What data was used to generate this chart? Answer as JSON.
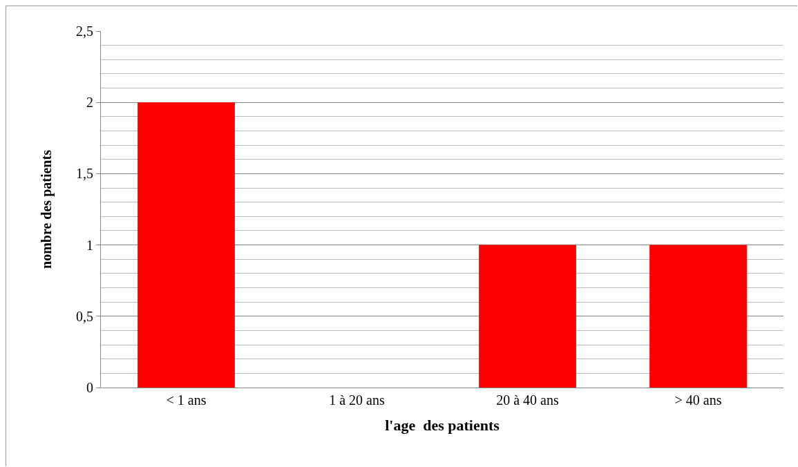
{
  "chart_data": {
    "type": "bar",
    "xlabel": "l'age  des patients",
    "ylabel": "nombre des patients",
    "categories": [
      "< 1 ans",
      "1 à 20 ans",
      "20 à 40 ans",
      "> 40 ans"
    ],
    "values": [
      2,
      0,
      1,
      1
    ],
    "color": "#ff0000",
    "ylim": [
      0,
      2.5
    ],
    "yticks": [
      0,
      {
        "value": 0.5,
        "label": "0,5"
      },
      1,
      {
        "value": 1.5,
        "label": "1,5"
      },
      2,
      {
        "value": 2.5,
        "label": "2,5"
      }
    ],
    "grid": true
  }
}
